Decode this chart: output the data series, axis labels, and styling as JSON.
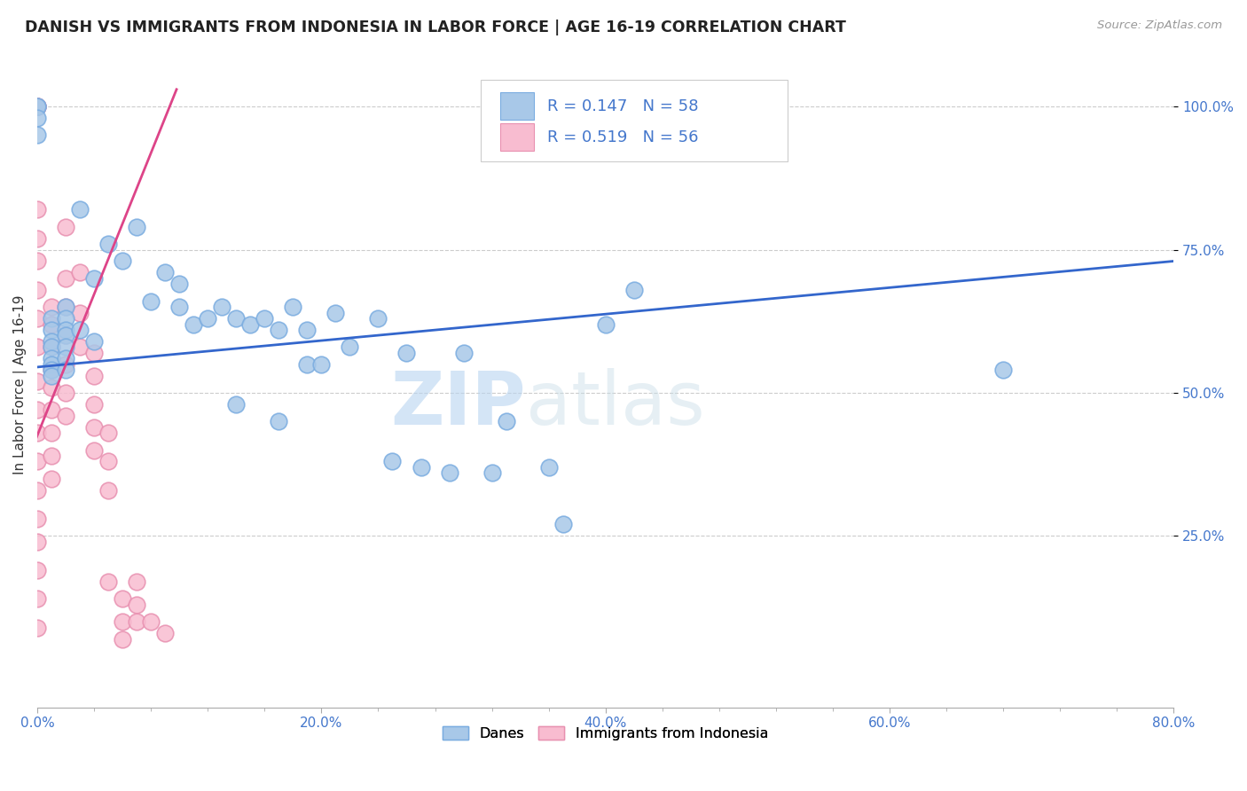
{
  "title": "DANISH VS IMMIGRANTS FROM INDONESIA IN LABOR FORCE | AGE 16-19 CORRELATION CHART",
  "source": "Source: ZipAtlas.com",
  "ylabel": "In Labor Force | Age 16-19",
  "xlim": [
    0.0,
    0.8
  ],
  "ylim": [
    -0.05,
    1.08
  ],
  "xtick_labels": [
    "0.0%",
    "",
    "",
    "",
    "",
    "20.0%",
    "",
    "",
    "",
    "",
    "40.0%",
    "",
    "",
    "",
    "",
    "",
    "60.0%",
    "",
    "",
    "",
    "80.0%"
  ],
  "xtick_vals": [
    0.0,
    0.04,
    0.08,
    0.12,
    0.16,
    0.2,
    0.24,
    0.28,
    0.32,
    0.36,
    0.4,
    0.44,
    0.48,
    0.52,
    0.56,
    0.6,
    0.64,
    0.68,
    0.72,
    0.76,
    0.8
  ],
  "xtick_major_labels": [
    "0.0%",
    "20.0%",
    "40.0%",
    "60.0%",
    "80.0%"
  ],
  "xtick_major_vals": [
    0.0,
    0.2,
    0.4,
    0.6,
    0.8
  ],
  "ytick_labels": [
    "25.0%",
    "50.0%",
    "75.0%",
    "100.0%"
  ],
  "ytick_vals": [
    0.25,
    0.5,
    0.75,
    1.0
  ],
  "danes_color": "#a8c8e8",
  "danes_edge_color": "#7aace0",
  "immigrants_color": "#f8bcd0",
  "immigrants_edge_color": "#e890b0",
  "trendline_danes_color": "#3366cc",
  "trendline_immigrants_color": "#dd4488",
  "danes_R": "0.147",
  "danes_N": "58",
  "immigrants_R": "0.519",
  "immigrants_N": "56",
  "legend_danes_label": "Danes",
  "legend_immigrants_label": "Immigrants from Indonesia",
  "watermark_zip": "ZIP",
  "watermark_atlas": "atlas",
  "danes_x": [
    0.0,
    0.0,
    0.0,
    0.0,
    0.01,
    0.01,
    0.01,
    0.01,
    0.01,
    0.01,
    0.01,
    0.01,
    0.02,
    0.02,
    0.02,
    0.02,
    0.02,
    0.02,
    0.02,
    0.03,
    0.03,
    0.04,
    0.04,
    0.05,
    0.06,
    0.07,
    0.08,
    0.09,
    0.1,
    0.1,
    0.11,
    0.12,
    0.13,
    0.14,
    0.14,
    0.15,
    0.16,
    0.17,
    0.17,
    0.18,
    0.19,
    0.19,
    0.2,
    0.21,
    0.22,
    0.24,
    0.25,
    0.26,
    0.27,
    0.29,
    0.3,
    0.32,
    0.33,
    0.36,
    0.37,
    0.4,
    0.42,
    0.68
  ],
  "danes_y": [
    1.0,
    1.0,
    0.98,
    0.95,
    0.63,
    0.61,
    0.59,
    0.58,
    0.56,
    0.55,
    0.54,
    0.53,
    0.65,
    0.63,
    0.61,
    0.6,
    0.58,
    0.56,
    0.54,
    0.82,
    0.61,
    0.7,
    0.59,
    0.76,
    0.73,
    0.79,
    0.66,
    0.71,
    0.69,
    0.65,
    0.62,
    0.63,
    0.65,
    0.48,
    0.63,
    0.62,
    0.63,
    0.45,
    0.61,
    0.65,
    0.61,
    0.55,
    0.55,
    0.64,
    0.58,
    0.63,
    0.38,
    0.57,
    0.37,
    0.36,
    0.57,
    0.36,
    0.45,
    0.37,
    0.27,
    0.62,
    0.68,
    0.54
  ],
  "immigrants_x": [
    0.0,
    0.0,
    0.0,
    0.0,
    0.0,
    0.0,
    0.0,
    0.0,
    0.0,
    0.0,
    0.0,
    0.0,
    0.0,
    0.0,
    0.0,
    0.0,
    0.0,
    0.0,
    0.0,
    0.0,
    0.01,
    0.01,
    0.01,
    0.01,
    0.01,
    0.01,
    0.01,
    0.01,
    0.01,
    0.02,
    0.02,
    0.02,
    0.02,
    0.02,
    0.02,
    0.02,
    0.03,
    0.03,
    0.03,
    0.04,
    0.04,
    0.04,
    0.04,
    0.04,
    0.05,
    0.05,
    0.05,
    0.05,
    0.06,
    0.06,
    0.06,
    0.07,
    0.07,
    0.07,
    0.08,
    0.09
  ],
  "immigrants_y": [
    1.0,
    1.0,
    1.0,
    1.0,
    0.82,
    0.77,
    0.73,
    0.68,
    0.63,
    0.58,
    0.52,
    0.47,
    0.43,
    0.38,
    0.33,
    0.28,
    0.24,
    0.19,
    0.14,
    0.09,
    0.65,
    0.62,
    0.58,
    0.54,
    0.51,
    0.47,
    0.43,
    0.39,
    0.35,
    0.79,
    0.7,
    0.65,
    0.6,
    0.55,
    0.5,
    0.46,
    0.71,
    0.64,
    0.58,
    0.57,
    0.53,
    0.48,
    0.44,
    0.4,
    0.43,
    0.38,
    0.33,
    0.17,
    0.14,
    0.1,
    0.07,
    0.17,
    0.13,
    0.1,
    0.1,
    0.08
  ],
  "danes_trend_x": [
    0.0,
    0.8
  ],
  "danes_trend_y": [
    0.545,
    0.73
  ],
  "immigrants_trend_x": [
    -0.005,
    0.098
  ],
  "immigrants_trend_y": [
    0.395,
    1.03
  ]
}
